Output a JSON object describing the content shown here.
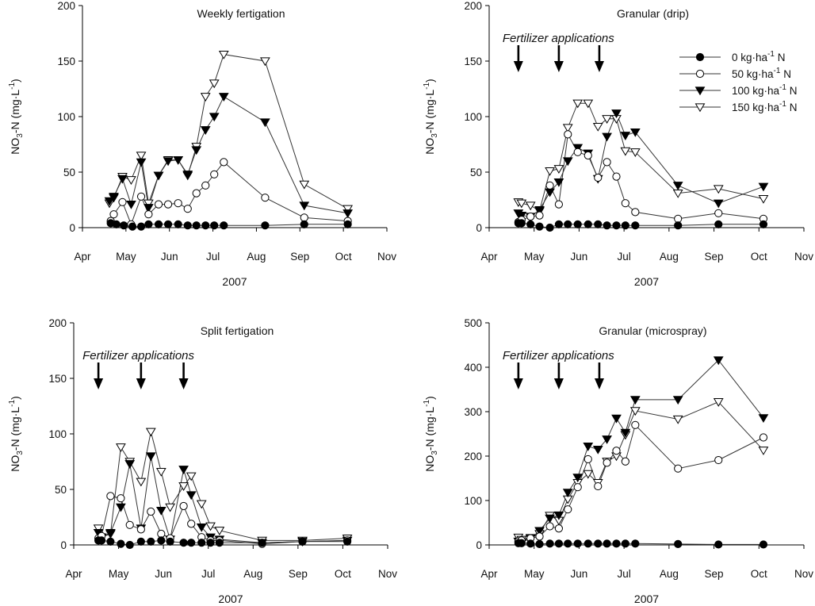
{
  "chart_data": [
    {
      "type": "line",
      "title": "Weekly fertigation",
      "xlabel": "2007",
      "ylabel": "NO3-N (mg·L-1)",
      "ylim": [
        0,
        200
      ],
      "yticks": [
        0,
        50,
        100,
        150,
        200
      ],
      "xlim": [
        0,
        7
      ],
      "xticks": [
        "Apr",
        "May",
        "Jun",
        "Jul",
        "Aug",
        "Sep",
        "Oct",
        "Nov"
      ],
      "annotation": null,
      "arrows": [],
      "legend": null,
      "series": [
        {
          "name": "0 kg·ha-1 N",
          "marker": "filled-circle",
          "x": [
            0.65,
            0.78,
            0.95,
            1.15,
            1.35,
            1.52,
            1.75,
            1.97,
            2.2,
            2.42,
            2.62,
            2.83,
            3.03,
            3.25,
            4.2,
            5.1,
            6.1
          ],
          "y": [
            4,
            3,
            2,
            1,
            1,
            3,
            3,
            3,
            3,
            2,
            2,
            2,
            2,
            2,
            2,
            3,
            3
          ]
        },
        {
          "name": "50 kg·ha-1 N",
          "marker": "open-circle",
          "x": [
            0.65,
            0.72,
            0.92,
            1.12,
            1.35,
            1.52,
            1.75,
            1.97,
            2.2,
            2.42,
            2.62,
            2.83,
            3.03,
            3.25,
            4.2,
            5.1,
            6.1
          ],
          "y": [
            6,
            12,
            23,
            3,
            28,
            12,
            21,
            21,
            22,
            17,
            31,
            38,
            48,
            59,
            27,
            9,
            6
          ]
        },
        {
          "name": "100 kg·ha-1 N",
          "marker": "filled-triangle",
          "x": [
            0.62,
            0.72,
            0.92,
            1.12,
            1.35,
            1.52,
            1.75,
            1.97,
            2.2,
            2.42,
            2.62,
            2.83,
            3.03,
            3.25,
            4.2,
            5.1,
            6.1
          ],
          "y": [
            24,
            28,
            44,
            21,
            59,
            18,
            47,
            60,
            61,
            48,
            70,
            88,
            100,
            118,
            95,
            20,
            13
          ]
        },
        {
          "name": "150 kg·ha-1 N",
          "marker": "open-triangle",
          "x": [
            0.62,
            0.72,
            0.92,
            1.12,
            1.35,
            1.52,
            1.75,
            1.97,
            2.2,
            2.42,
            2.62,
            2.83,
            3.03,
            3.25,
            4.2,
            5.1,
            6.1
          ],
          "y": [
            22,
            27,
            46,
            43,
            65,
            22,
            47,
            61,
            61,
            47,
            73,
            118,
            130,
            156,
            150,
            39,
            17
          ]
        }
      ]
    },
    {
      "type": "line",
      "title": "Granular (drip)",
      "xlabel": "2007",
      "ylabel": "NO3-N (mg·L-1)",
      "ylim": [
        0,
        200
      ],
      "yticks": [
        0,
        50,
        100,
        150,
        200
      ],
      "xlim": [
        0,
        7
      ],
      "xticks": [
        "Apr",
        "May",
        "Jun",
        "Jul",
        "Aug",
        "Sep",
        "Oct",
        "Nov"
      ],
      "annotation": "Fertilizer applications",
      "arrows": [
        0.65,
        1.55,
        2.45
      ],
      "legend": "top-right",
      "series": [
        {
          "name": "0 kg·ha-1 N",
          "marker": "filled-circle",
          "x": [
            0.65,
            0.72,
            0.92,
            1.12,
            1.35,
            1.55,
            1.75,
            1.97,
            2.2,
            2.42,
            2.62,
            2.83,
            3.03,
            3.25,
            4.2,
            5.1,
            6.1
          ],
          "y": [
            4,
            4,
            3,
            1,
            0,
            3,
            3,
            3,
            3,
            3,
            2,
            2,
            2,
            2,
            2,
            3,
            3
          ]
        },
        {
          "name": "50 kg·ha-1 N",
          "marker": "open-circle",
          "x": [
            0.65,
            0.72,
            0.92,
            1.12,
            1.35,
            1.55,
            1.75,
            1.97,
            2.2,
            2.42,
            2.62,
            2.83,
            3.03,
            3.25,
            4.2,
            5.1,
            6.1
          ],
          "y": [
            5,
            7,
            10,
            11,
            38,
            21,
            84,
            68,
            65,
            45,
            59,
            46,
            22,
            14,
            8,
            13,
            8
          ]
        },
        {
          "name": "100 kg·ha-1 N",
          "marker": "filled-triangle",
          "x": [
            0.65,
            0.72,
            0.92,
            1.12,
            1.35,
            1.55,
            1.75,
            1.97,
            2.2,
            2.42,
            2.62,
            2.83,
            3.03,
            3.25,
            4.2,
            5.1,
            6.1
          ],
          "y": [
            13,
            11,
            10,
            16,
            32,
            41,
            60,
            72,
            67,
            44,
            82,
            103,
            83,
            86,
            38,
            22,
            37
          ]
        },
        {
          "name": "150 kg·ha-1 N",
          "marker": "open-triangle",
          "x": [
            0.65,
            0.72,
            0.92,
            1.12,
            1.35,
            1.55,
            1.75,
            1.97,
            2.2,
            2.42,
            2.62,
            2.83,
            3.03,
            3.25,
            4.2,
            5.1,
            6.1
          ],
          "y": [
            23,
            22,
            20,
            15,
            51,
            53,
            90,
            112,
            112,
            91,
            98,
            98,
            69,
            68,
            31,
            35,
            26
          ]
        }
      ]
    },
    {
      "type": "line",
      "title": "Split fertigation",
      "xlabel": "2007",
      "ylabel": "NO3-N (mg·L-1)",
      "ylim": [
        0,
        200
      ],
      "yticks": [
        0,
        50,
        100,
        150,
        200
      ],
      "xlim": [
        0,
        7
      ],
      "xticks": [
        "Apr",
        "May",
        "Jun",
        "Jul",
        "Aug",
        "Sep",
        "Oct",
        "Nov"
      ],
      "annotation": "Fertilizer applications",
      "arrows": [
        0.55,
        1.5,
        2.45
      ],
      "legend": null,
      "series": [
        {
          "name": "0 kg·ha-1 N",
          "marker": "filled-circle",
          "x": [
            0.55,
            0.62,
            0.82,
            1.05,
            1.25,
            1.5,
            1.72,
            1.95,
            2.15,
            2.45,
            2.62,
            2.85,
            3.05,
            3.25,
            4.2,
            5.1,
            6.1
          ],
          "y": [
            4,
            4,
            3,
            1,
            0,
            3,
            3,
            4,
            3,
            2,
            2,
            2,
            2,
            2,
            2,
            3,
            3
          ]
        },
        {
          "name": "50 kg·ha-1 N",
          "marker": "open-circle",
          "x": [
            0.55,
            0.62,
            0.82,
            1.05,
            1.25,
            1.5,
            1.72,
            1.95,
            2.15,
            2.45,
            2.62,
            2.85,
            3.05,
            3.25,
            4.2,
            5.1,
            6.1
          ],
          "y": [
            6,
            8,
            44,
            42,
            18,
            14,
            30,
            10,
            6,
            35,
            19,
            7,
            4,
            4,
            1,
            3,
            4
          ]
        },
        {
          "name": "100 kg·ha-1 N",
          "marker": "filled-triangle",
          "x": [
            0.55,
            0.62,
            0.82,
            1.05,
            1.25,
            1.5,
            1.72,
            1.95,
            2.15,
            2.45,
            2.62,
            2.85,
            3.05,
            3.25,
            4.2,
            5.1,
            6.1
          ],
          "y": [
            11,
            7,
            11,
            34,
            73,
            15,
            80,
            31,
            5,
            68,
            45,
            16,
            7,
            5,
            2,
            3,
            4
          ]
        },
        {
          "name": "150 kg·ha-1 N",
          "marker": "open-triangle",
          "x": [
            0.55,
            0.62,
            0.82,
            1.05,
            1.25,
            1.5,
            1.72,
            1.95,
            2.15,
            2.45,
            2.62,
            2.85,
            3.05,
            3.25,
            4.2,
            5.1,
            6.1
          ],
          "y": [
            15,
            7,
            10,
            88,
            75,
            57,
            102,
            66,
            34,
            53,
            62,
            37,
            17,
            13,
            4,
            4,
            6
          ]
        }
      ]
    },
    {
      "type": "line",
      "title": "Granular (microspray)",
      "xlabel": "2007",
      "ylabel": "NO3-N (mg·L-1)",
      "ylim": [
        0,
        500
      ],
      "yticks": [
        0,
        100,
        200,
        300,
        400,
        500
      ],
      "xlim": [
        0,
        7
      ],
      "xticks": [
        "Apr",
        "May",
        "Jun",
        "Jul",
        "Aug",
        "Sep",
        "Oct",
        "Nov"
      ],
      "annotation": "Fertilizer applications",
      "arrows": [
        0.65,
        1.55,
        2.45
      ],
      "legend": null,
      "series": [
        {
          "name": "0 kg·ha-1 N",
          "marker": "filled-circle",
          "x": [
            0.65,
            0.72,
            0.92,
            1.12,
            1.35,
            1.55,
            1.75,
            1.97,
            2.2,
            2.42,
            2.62,
            2.83,
            3.03,
            3.25,
            4.2,
            5.1,
            6.1
          ],
          "y": [
            4,
            4,
            3,
            2,
            3,
            3,
            3,
            3,
            3,
            3,
            3,
            3,
            3,
            3,
            2,
            1,
            1
          ]
        },
        {
          "name": "50 kg·ha-1 N",
          "marker": "open-circle",
          "x": [
            0.65,
            0.72,
            0.92,
            1.12,
            1.35,
            1.55,
            1.75,
            1.97,
            2.2,
            2.42,
            2.62,
            2.83,
            3.03,
            3.25,
            4.2,
            5.1,
            6.1
          ],
          "y": [
            8,
            10,
            15,
            19,
            42,
            37,
            80,
            130,
            193,
            132,
            185,
            212,
            188,
            270,
            172,
            191,
            242
          ]
        },
        {
          "name": "100 kg·ha-1 N",
          "marker": "filled-triangle",
          "x": [
            0.65,
            0.72,
            0.92,
            1.12,
            1.35,
            1.55,
            1.75,
            1.97,
            2.2,
            2.42,
            2.62,
            2.83,
            3.03,
            3.25,
            4.2,
            5.1,
            6.1
          ],
          "y": [
            8,
            6,
            14,
            32,
            60,
            67,
            118,
            152,
            222,
            215,
            238,
            285,
            253,
            327,
            327,
            416,
            286
          ]
        },
        {
          "name": "150 kg·ha-1 N",
          "marker": "open-triangle",
          "x": [
            0.65,
            0.72,
            0.92,
            1.12,
            1.35,
            1.55,
            1.75,
            1.97,
            2.2,
            2.42,
            2.62,
            2.83,
            3.03,
            3.25,
            4.2,
            5.1,
            6.1
          ],
          "y": [
            17,
            12,
            16,
            25,
            66,
            55,
            103,
            140,
            160,
            140,
            188,
            200,
            248,
            302,
            283,
            322,
            213
          ]
        }
      ]
    }
  ]
}
